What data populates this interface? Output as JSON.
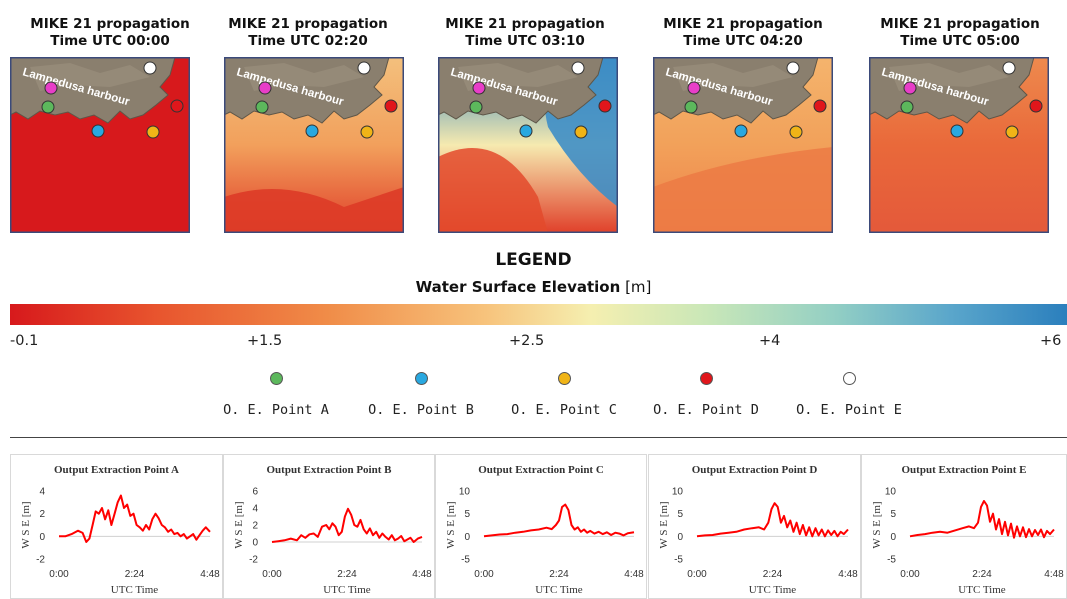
{
  "panels": [
    {
      "line1": "MIKE 21 propagation",
      "line2": "Time UTC 00:00",
      "map_label": "Lampedusa harbour",
      "sea": [
        [
          "#d7191c",
          "#d7191c",
          "#d7191c"
        ]
      ],
      "phase": 0
    },
    {
      "line1": "MIKE 21 propagation",
      "line2": "Time UTC 02:20",
      "map_label": "Lampedusa harbour",
      "sea": [
        [
          "#f3c07d",
          "#f2a05c",
          "#e0402a"
        ]
      ],
      "phase": 1
    },
    {
      "line1": "MIKE 21 propagation",
      "line2": "Time UTC 03:10",
      "map_label": "Lampedusa harbour",
      "sea": [
        [
          "#2b7fbd",
          "#f6eab0",
          "#e0402a"
        ]
      ],
      "phase": 2
    },
    {
      "line1": "MIKE 21 propagation",
      "line2": "Time UTC 04:20",
      "map_label": "Lampedusa harbour",
      "sea": [
        [
          "#f4b46d",
          "#f2a15a",
          "#ee8148"
        ]
      ],
      "phase": 3
    },
    {
      "line1": "MIKE 21 propagation",
      "line2": "Time UTC 05:00",
      "map_label": "Lampedusa harbour",
      "sea": [
        [
          "#ee8a4e",
          "#e9693a",
          "#e4593a"
        ]
      ],
      "phase": 4
    }
  ],
  "legend": {
    "title": "LEGEND",
    "subtitle_bold": "Water Surface Elevation",
    "subtitle_unit": "[m]",
    "ticks": [
      "-0.1",
      "+1.5",
      "+2.5",
      "+4",
      "+6"
    ]
  },
  "points": [
    {
      "label": "O. E. Point A",
      "color": "#5cb85c"
    },
    {
      "label": "O. E. Point B",
      "color": "#29a8e0"
    },
    {
      "label": "O. E. Point C",
      "color": "#f0b417"
    },
    {
      "label": "O. E. Point D",
      "color": "#e0161b"
    },
    {
      "label": "O. E. Point E",
      "color": "#ffffff"
    }
  ],
  "colors": {
    "series": "#ff0000",
    "land": "#8a7f6e"
  },
  "chart_data": [
    {
      "type": "line",
      "title": "Output Extraction Point A",
      "ylabel": "W S E [m]",
      "xlabel": "UTC Time",
      "ylim": [
        -2,
        4
      ],
      "yticks": [
        "-2",
        "0",
        "2",
        "4"
      ],
      "xticks": [
        "0:00",
        "2:24",
        "4:48"
      ],
      "xlim": [
        0,
        288
      ],
      "x": [
        0,
        12,
        24,
        36,
        45,
        52,
        58,
        64,
        70,
        76,
        82,
        88,
        94,
        100,
        106,
        112,
        118,
        124,
        130,
        136,
        142,
        148,
        154,
        160,
        166,
        172,
        178,
        184,
        190,
        196,
        202,
        208,
        214,
        220,
        226,
        232,
        238,
        244,
        250,
        256,
        262,
        268,
        274,
        280,
        288
      ],
      "values": [
        0,
        0,
        0.2,
        0.5,
        0.3,
        -0.5,
        -0.2,
        1.0,
        2.2,
        2.0,
        2.5,
        1.5,
        2.3,
        1.0,
        2.0,
        3.0,
        3.6,
        2.5,
        2.8,
        1.8,
        2.0,
        1.0,
        0.8,
        0.5,
        1.0,
        0.6,
        1.5,
        2.0,
        1.6,
        1.0,
        0.8,
        0.4,
        0.6,
        0.2,
        0.3,
        0.0,
        0.2,
        -0.2,
        0.0,
        0.2,
        -0.3,
        0.1,
        0.5,
        0.8,
        0.4
      ]
    },
    {
      "type": "line",
      "title": "Output Extraction Point B",
      "ylabel": "W S E [m]",
      "xlabel": "UTC Time",
      "ylim": [
        -2,
        6
      ],
      "yticks": [
        "-2",
        "0",
        "2",
        "4",
        "6"
      ],
      "xticks": [
        "0:00",
        "2:24",
        "4:48"
      ],
      "xlim": [
        0,
        288
      ],
      "x": [
        0,
        12,
        24,
        36,
        48,
        56,
        64,
        72,
        80,
        88,
        96,
        104,
        110,
        116,
        122,
        128,
        134,
        140,
        146,
        152,
        158,
        164,
        170,
        176,
        182,
        188,
        194,
        200,
        206,
        212,
        218,
        224,
        230,
        236,
        242,
        248,
        254,
        260,
        266,
        272,
        280,
        288
      ],
      "values": [
        0,
        0.1,
        0.2,
        0.4,
        0.2,
        0.8,
        0.5,
        0.9,
        1.0,
        0.6,
        1.8,
        2.0,
        1.5,
        2.2,
        1.8,
        0.8,
        1.2,
        3.0,
        3.9,
        3.2,
        2.0,
        1.8,
        2.6,
        1.5,
        1.0,
        1.6,
        0.8,
        1.2,
        0.5,
        1.0,
        0.6,
        0.3,
        0.8,
        0.2,
        0.4,
        0.7,
        0.1,
        0.3,
        0.5,
        0.0,
        0.4,
        0.6
      ]
    },
    {
      "type": "line",
      "title": "Output Extraction Point C",
      "ylabel": "W S E [m]",
      "xlabel": "UTC Time",
      "ylim": [
        -5,
        10
      ],
      "yticks": [
        "-5",
        "0",
        "5",
        "10"
      ],
      "xticks": [
        "0:00",
        "2:24",
        "4:48"
      ],
      "xlim": [
        0,
        288
      ],
      "x": [
        0,
        15,
        30,
        45,
        60,
        75,
        90,
        105,
        120,
        130,
        138,
        144,
        150,
        156,
        162,
        168,
        174,
        180,
        186,
        192,
        198,
        204,
        212,
        220,
        228,
        236,
        244,
        252,
        260,
        268,
        276,
        288
      ],
      "values": [
        0,
        0.2,
        0.4,
        0.5,
        0.8,
        1.0,
        1.3,
        1.5,
        1.9,
        1.6,
        2.5,
        3.5,
        6.5,
        7.0,
        5.8,
        2.5,
        1.5,
        2.0,
        1.0,
        1.5,
        0.8,
        1.2,
        0.6,
        1.0,
        0.5,
        0.9,
        0.3,
        0.8,
        0.6,
        0.2,
        0.7,
        0.9
      ]
    },
    {
      "type": "line",
      "title": "Output Extraction Point D",
      "ylabel": "W S E [m]",
      "xlabel": "UTC Time",
      "ylim": [
        -5,
        10
      ],
      "yticks": [
        "-5",
        "0",
        "5",
        "10"
      ],
      "xticks": [
        "0:00",
        "2:24",
        "4:48"
      ],
      "xlim": [
        0,
        288
      ],
      "x": [
        0,
        15,
        30,
        45,
        60,
        75,
        90,
        105,
        118,
        128,
        136,
        142,
        148,
        154,
        160,
        166,
        172,
        178,
        184,
        190,
        196,
        202,
        208,
        214,
        220,
        226,
        232,
        238,
        244,
        250,
        256,
        262,
        268,
        274,
        280,
        288
      ],
      "values": [
        0,
        0.2,
        0.3,
        0.6,
        0.8,
        1.0,
        1.5,
        1.8,
        2.0,
        1.5,
        3.0,
        6.0,
        7.3,
        6.5,
        3.0,
        4.5,
        2.0,
        3.5,
        1.0,
        3.0,
        0.5,
        2.5,
        0.2,
        2.0,
        0.0,
        1.8,
        0.2,
        1.5,
        0.0,
        1.3,
        0.3,
        1.2,
        0.0,
        1.0,
        0.5,
        1.5
      ]
    },
    {
      "type": "line",
      "title": "Output Extraction Point E",
      "ylabel": "W S E [m]",
      "xlabel": "UTC Time",
      "ylim": [
        -5,
        10
      ],
      "yticks": [
        "-5",
        "0",
        "5",
        "10"
      ],
      "xticks": [
        "0:00",
        "2:24",
        "4:48"
      ],
      "xlim": [
        0,
        288
      ],
      "x": [
        0,
        15,
        30,
        45,
        60,
        75,
        90,
        105,
        118,
        128,
        136,
        142,
        148,
        154,
        160,
        166,
        172,
        178,
        184,
        190,
        196,
        202,
        208,
        214,
        220,
        226,
        232,
        238,
        244,
        250,
        256,
        262,
        268,
        274,
        280,
        288
      ],
      "values": [
        0,
        0.3,
        0.5,
        0.8,
        1.0,
        0.8,
        1.3,
        1.8,
        2.2,
        1.8,
        3.0,
        6.5,
        7.8,
        6.8,
        3.2,
        5.0,
        1.5,
        3.8,
        0.5,
        3.2,
        0.2,
        2.8,
        -0.3,
        2.2,
        0.0,
        2.0,
        -0.2,
        1.6,
        0.0,
        1.4,
        0.3,
        1.5,
        -0.2,
        1.2,
        0.5,
        1.5
      ]
    }
  ]
}
